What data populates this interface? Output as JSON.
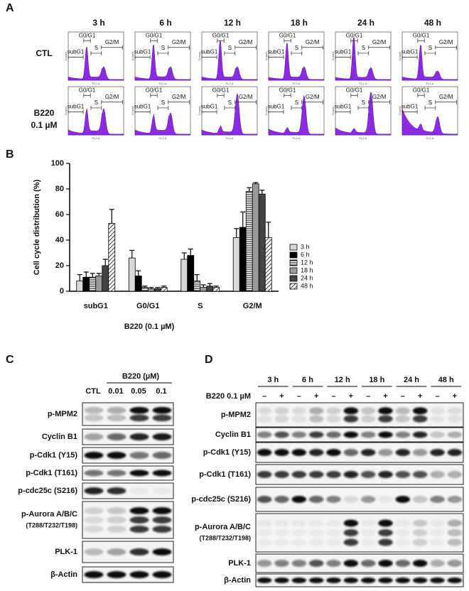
{
  "panel_labels": [
    "A",
    "B",
    "C",
    "D"
  ],
  "panel_a": {
    "timepoints": [
      "3 h",
      "6 h",
      "12 h",
      "18 h",
      "24 h",
      "48 h"
    ],
    "rows": [
      {
        "label": "CTL"
      },
      {
        "label": "B220",
        "sublabel": "0.1 µM"
      }
    ],
    "gates": [
      "G0/G1",
      "subG1",
      "S",
      "G2/M"
    ],
    "y_axis_label": "Counts",
    "x_axis_label": "FL2-A"
  },
  "chart_data": {
    "type": "bar",
    "y_label": "Cell cycle distribution (%)",
    "x_label": "B220 (0.1 µM)",
    "categories": [
      "subG1",
      "G0/G1",
      "S",
      "G2/M"
    ],
    "series": [
      {
        "name": "3 h",
        "color": "#d9d9d9",
        "values": [
          8,
          26,
          25,
          42
        ],
        "errors": [
          5,
          6,
          5,
          7
        ]
      },
      {
        "name": "6 h",
        "color": "#000000",
        "values": [
          11,
          12,
          28,
          50
        ],
        "errors": [
          4,
          4,
          5,
          12
        ]
      },
      {
        "name": "12 h",
        "color": "#ffffff",
        "hatch": "horizontal",
        "values": [
          11,
          3,
          8,
          78
        ],
        "errors": [
          3,
          1,
          5,
          3
        ]
      },
      {
        "name": "18 h",
        "color": "#9a9a9a",
        "values": [
          12,
          2,
          3,
          84
        ],
        "errors": [
          2,
          1,
          2,
          1
        ]
      },
      {
        "name": "24 h",
        "color": "#444444",
        "values": [
          20,
          2,
          4,
          76
        ],
        "errors": [
          5,
          1,
          2,
          3
        ]
      },
      {
        "name": "48 h",
        "color": "#ffffff",
        "hatch": "diagonal",
        "values": [
          53,
          3,
          3,
          42
        ],
        "errors": [
          11,
          1,
          1,
          12
        ]
      }
    ],
    "ylim": [
      0,
      100
    ],
    "yticks": [
      0,
      20,
      40,
      60,
      80,
      100
    ],
    "legend": "right"
  },
  "panel_c": {
    "treatment": "B220 (µM)",
    "lanes": [
      "CTL",
      "0.01",
      "0.05",
      "0.1"
    ],
    "rows": [
      {
        "label": "p-MPM2"
      },
      {
        "label": "Cyclin B1"
      },
      {
        "label": "p-Cdk1 (Y15)"
      },
      {
        "label": "p-Cdk1 (T161)"
      },
      {
        "label": "p-cdc25c (S216)"
      },
      {
        "label": "p-Aurora A/B/C",
        "sublabel": "(T288/T232/T198)"
      },
      {
        "label": "PLK-1"
      },
      {
        "label": "β-Actin"
      }
    ]
  },
  "panel_d": {
    "timepoints": [
      "3 h",
      "6 h",
      "12 h",
      "18 h",
      "24 h",
      "48 h"
    ],
    "treatment": "B220 0.1 µM",
    "signs": [
      "–",
      "+"
    ],
    "rows": [
      {
        "label": "p-MPM2"
      },
      {
        "label": "Cyclin B1"
      },
      {
        "label": "p-Cdk1 (Y15)"
      },
      {
        "label": "p-Cdk1 (T161)"
      },
      {
        "label": "p-cdc25c (S216)"
      },
      {
        "label": "p-Aurora A/B/C",
        "sublabel": "(T288/T232/T198)"
      },
      {
        "label": "PLK-1"
      },
      {
        "label": "β-Actin"
      }
    ]
  }
}
